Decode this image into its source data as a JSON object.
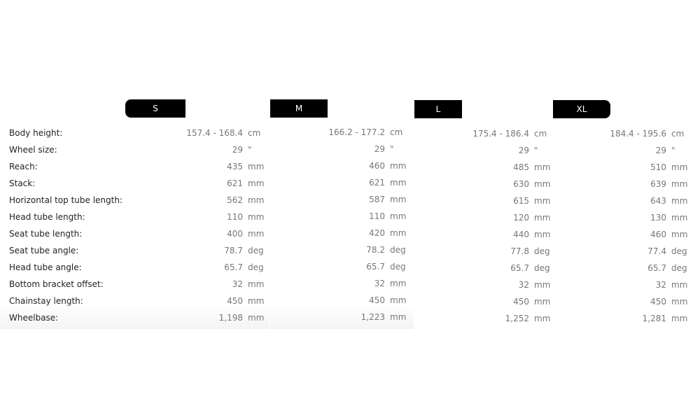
{
  "labels": [
    "Body height:",
    "Wheel size:",
    "Reach:",
    "Stack:",
    "Horizontal top tube length:",
    "Head tube length:",
    "Seat tube length:",
    "Seat tube angle:",
    "Head tube angle:",
    "Bottom bracket offset:",
    "Chainstay length:",
    "Wheelbase:"
  ],
  "units": [
    "cm",
    "\"",
    "mm",
    "mm",
    "mm",
    "mm",
    "mm",
    "deg",
    "deg",
    "mm",
    "mm",
    "mm"
  ],
  "sizes": [
    {
      "name": "S",
      "values": [
        "157.4 - 168.4",
        "29",
        "435",
        "621",
        "562",
        "110",
        "400",
        "78.7",
        "65.7",
        "32",
        "450",
        "1,198"
      ]
    },
    {
      "name": "M",
      "values": [
        "166.2 - 177.2",
        "29",
        "460",
        "621",
        "587",
        "110",
        "420",
        "78.2",
        "65.7",
        "32",
        "450",
        "1,223"
      ]
    },
    {
      "name": "L",
      "values": [
        "175.4 - 186.4",
        "29",
        "485",
        "630",
        "615",
        "120",
        "440",
        "77.8",
        "65.7",
        "32",
        "450",
        "1,252"
      ]
    },
    {
      "name": "XL",
      "values": [
        "184.4 - 195.6",
        "29",
        "510",
        "639",
        "643",
        "130",
        "460",
        "77.4",
        "65.7",
        "32",
        "450",
        "1,281"
      ]
    }
  ]
}
